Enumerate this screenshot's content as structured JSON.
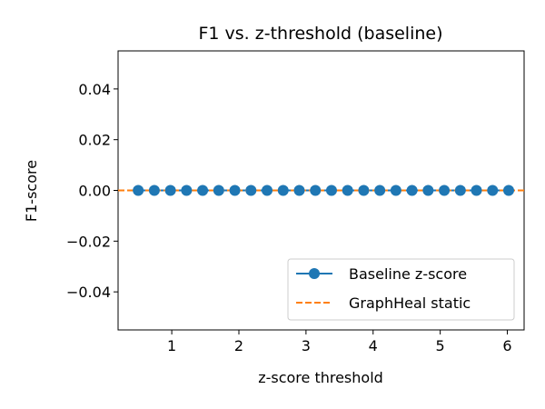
{
  "chart_data": {
    "type": "line",
    "title": "F1 vs. z-threshold (baseline)",
    "xlabel": "z-score threshold",
    "ylabel": "F1-score",
    "xlim": [
      0.2,
      6.25
    ],
    "ylim": [
      -0.055,
      0.055
    ],
    "xticks": [
      1,
      2,
      3,
      4,
      5,
      6
    ],
    "xtick_labels": [
      "1",
      "2",
      "3",
      "4",
      "5",
      "6"
    ],
    "yticks": [
      -0.04,
      -0.02,
      0.0,
      0.02,
      0.04
    ],
    "ytick_labels": [
      "−0.04",
      "−0.02",
      "0.00",
      "0.02",
      "0.04"
    ],
    "grid": false,
    "legend_position": "lower-right",
    "series": [
      {
        "name": "Baseline z-score",
        "style": "solid line with circle markers",
        "color": "#1f77b4",
        "x": [
          0.5,
          0.74,
          0.98,
          1.22,
          1.46,
          1.7,
          1.94,
          2.18,
          2.42,
          2.66,
          2.9,
          3.14,
          3.38,
          3.62,
          3.86,
          4.1,
          4.34,
          4.58,
          4.82,
          5.06,
          5.3,
          5.54,
          5.78,
          6.02
        ],
        "y": [
          0,
          0,
          0,
          0,
          0,
          0,
          0,
          0,
          0,
          0,
          0,
          0,
          0,
          0,
          0,
          0,
          0,
          0,
          0,
          0,
          0,
          0,
          0,
          0
        ]
      },
      {
        "name": "GraphHeal static",
        "style": "dashed horizontal line",
        "color": "#ff7f0e",
        "y": 0
      }
    ]
  }
}
